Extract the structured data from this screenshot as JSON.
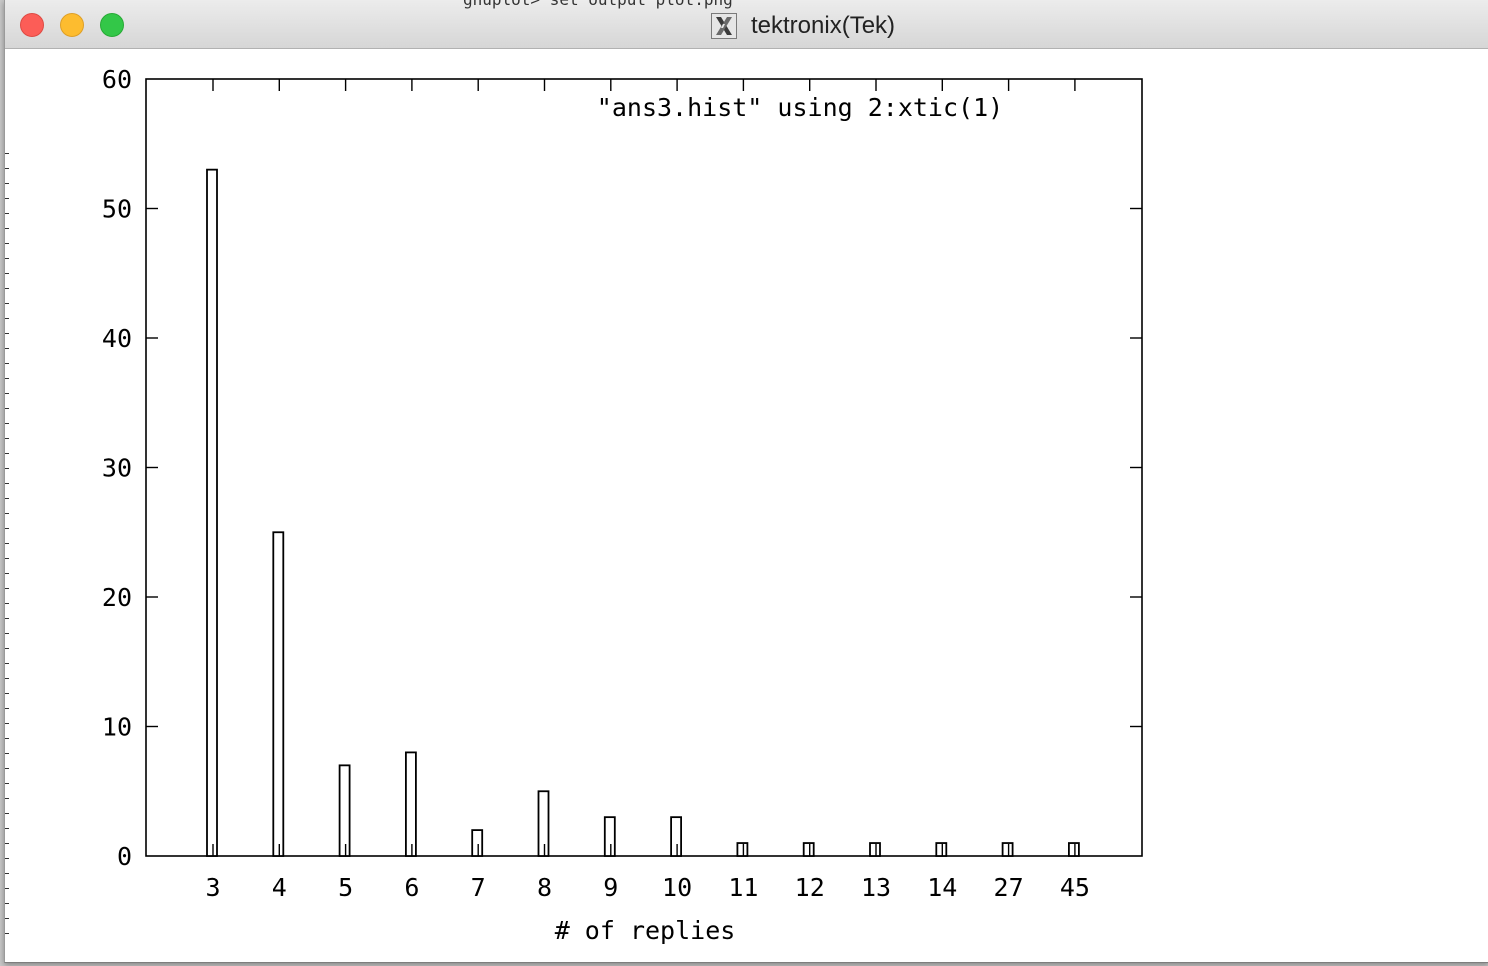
{
  "window": {
    "title": "tektronix(Tek)",
    "behind_text": "gnuplot> set output plot.png"
  },
  "chart_data": {
    "type": "bar",
    "title": "\"ans3.hist\" using 2:xtic(1)",
    "xlabel": "# of replies",
    "ylabel": "",
    "categories": [
      "3",
      "4",
      "5",
      "6",
      "7",
      "8",
      "9",
      "10",
      "11",
      "12",
      "13",
      "14",
      "27",
      "45"
    ],
    "values": [
      53,
      25,
      7,
      8,
      2,
      5,
      3,
      3,
      1,
      1,
      1,
      1,
      1,
      1
    ],
    "ylim": [
      0,
      60
    ],
    "yticks": [
      "0",
      "10",
      "20",
      "30",
      "40",
      "50",
      "60"
    ],
    "grid": false,
    "color": "#000000"
  }
}
